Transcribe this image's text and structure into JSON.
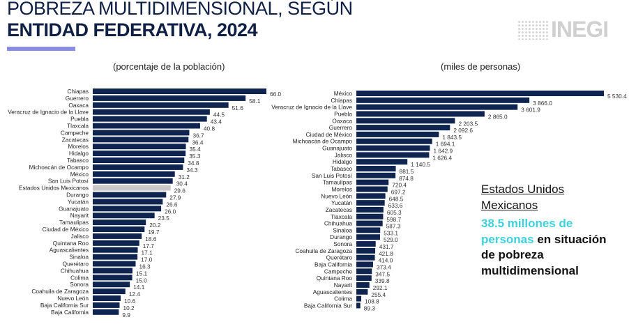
{
  "header": {
    "title_line1": "POBREZA MULTIDIMENSIONAL, SEGÚN",
    "title_line2": "ENTIDAD FEDERATIVA, 2024",
    "logo": "INEGI"
  },
  "callout": {
    "line1": "Estados Unidos",
    "line2": "Mexicanos",
    "highlight1": "38.5 millones de",
    "highlight2": "personas",
    "rest2": " en situación",
    "line4": "de pobreza",
    "line5": "multidimensional"
  },
  "colors": {
    "bar": "#0f2550",
    "highlight_bar": "#c8c8c8",
    "accent": "#8b8ce6",
    "callout_highlight": "#3fd0dc"
  },
  "chart_data": [
    {
      "type": "bar",
      "orientation": "horizontal",
      "subtitle": "(porcentaje de la población)",
      "categories": [
        "Chiapas",
        "Guerrero",
        "Oaxaca",
        "Veracruz de Ignacio de la Llave",
        "Puebla",
        "Tlaxcala",
        "Campeche",
        "Zacatecas",
        "Morelos",
        "Hidalgo",
        "Tabasco",
        "Michoacán de Ocampo",
        "México",
        "San Luis Potosí",
        "Estados Unidos Mexicanos",
        "Durango",
        "Yucatán",
        "Guanajuato",
        "Nayarit",
        "Tamaulipas",
        "Ciudad de México",
        "Jalisco",
        "Quintana Roo",
        "Aguascalientes",
        "Sinaloa",
        "Querétaro",
        "Chihuahua",
        "Colima",
        "Sonora",
        "Coahuila de Zaragoza",
        "Nuevo León",
        "Baja California Sur",
        "Baja California"
      ],
      "values": [
        66.0,
        58.1,
        51.6,
        44.5,
        43.4,
        40.8,
        36.7,
        36.4,
        35.4,
        35.3,
        34.8,
        34.3,
        31.2,
        30.4,
        29.6,
        27.9,
        26.6,
        26.0,
        23.5,
        20.2,
        19.7,
        18.6,
        17.7,
        17.1,
        17.0,
        16.3,
        15.1,
        15.0,
        14.1,
        12.4,
        10.6,
        10.2,
        9.9
      ],
      "highlight": "Estados Unidos Mexicanos",
      "decimals": 1,
      "xlim": [
        0,
        66.0
      ]
    },
    {
      "type": "bar",
      "orientation": "horizontal",
      "subtitle": "(miles de personas)",
      "categories": [
        "México",
        "Chiapas",
        "Veracruz de Ignacio de la Llave",
        "Puebla",
        "Oaxaca",
        "Guerrero",
        "Ciudad de México",
        "Michoacán de Ocampo",
        "Guanajuato",
        "Jalisco",
        "Hidalgo",
        "Tabasco",
        "San Luis Potosí",
        "Tamaulipas",
        "Morelos",
        "Nuevo León",
        "Yucatán",
        "Zacatecas",
        "Tlaxcala",
        "Chihuahua",
        "Sinaloa",
        "Durango",
        "Sonora",
        "Coahuila de Zaragoza",
        "Querétaro",
        "Baja California",
        "Campeche",
        "Quintana Roo",
        "Nayarit",
        "Aguascalientes",
        "Colima",
        "Baja California Sur"
      ],
      "values": [
        5530.4,
        3866.0,
        3601.9,
        2865.0,
        2203.5,
        2092.6,
        1843.5,
        1694.1,
        1642.9,
        1626.4,
        1140.5,
        881.5,
        874.8,
        720.4,
        697.2,
        648.5,
        633.6,
        605.3,
        598.7,
        587.3,
        533.1,
        529.0,
        431.7,
        421.8,
        414.0,
        373.4,
        347.5,
        339.8,
        292.1,
        255.4,
        108.8,
        89.3
      ],
      "decimals": 1,
      "xlim": [
        0,
        5530.4
      ]
    }
  ]
}
